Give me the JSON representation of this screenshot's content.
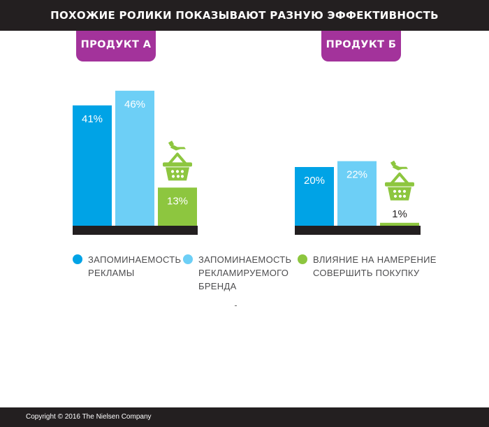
{
  "header": {
    "title": "ПОХОЖИЕ РОЛИКИ ПОКАЗЫВАЮТ РАЗНУЮ ЭФФЕКТИВНОСТЬ"
  },
  "colors": {
    "ad_recall": "#00a3e6",
    "brand_recall": "#6dcff6",
    "purchase_intent": "#8dc63f",
    "baseline": "#231f20",
    "tab": "#a3339b"
  },
  "legend": [
    {
      "label": "ЗАПОМИНАЕМОСТЬ\nРЕКЛАМЫ",
      "color": "#00a3e6"
    },
    {
      "label": "ЗАПОМИНАЕМОСТЬ\nРЕКЛАМИРУЕМОГО\nБРЕНДА",
      "color": "#6dcff6"
    },
    {
      "label": "ВЛИЯНИЕ НА НАМЕРЕНИЕ\nСОВЕРШИТЬ ПОКУПКУ",
      "color": "#8dc63f"
    }
  ],
  "chart_data": [
    {
      "type": "bar",
      "title": "ПРОДУКТ А",
      "categories": [
        "ЗАПОМИНАЕМОСТЬ РЕКЛАМЫ",
        "ЗАПОМИНАЕМОСТЬ РЕКЛАМИРУЕМОГО БРЕНДА",
        "ВЛИЯНИЕ НА НАМЕРЕНИЕ СОВЕРШИТЬ ПОКУПКУ"
      ],
      "values": [
        41,
        46,
        13
      ],
      "labels": [
        "41%",
        "46%",
        "13%"
      ],
      "ylim": [
        0,
        55
      ],
      "icon": "shopping-basket-icon"
    },
    {
      "type": "bar",
      "title": "ПРОДУКТ Б",
      "categories": [
        "ЗАПОМИНАЕМОСТЬ РЕКЛАМЫ",
        "ЗАПОМИНАЕМОСТЬ РЕКЛАМИРУЕМОГО БРЕНДА",
        "ВЛИЯНИЕ НА НАМЕРЕНИЕ СОВЕРШИТЬ ПОКУПКУ"
      ],
      "values": [
        20,
        22,
        1
      ],
      "labels": [
        "20%",
        "22%",
        "1%"
      ],
      "ylim": [
        0,
        55
      ],
      "icon": "shopping-basket-icon"
    }
  ],
  "footer": {
    "copyright": "Copyright © 2016 The Nielsen Company"
  }
}
